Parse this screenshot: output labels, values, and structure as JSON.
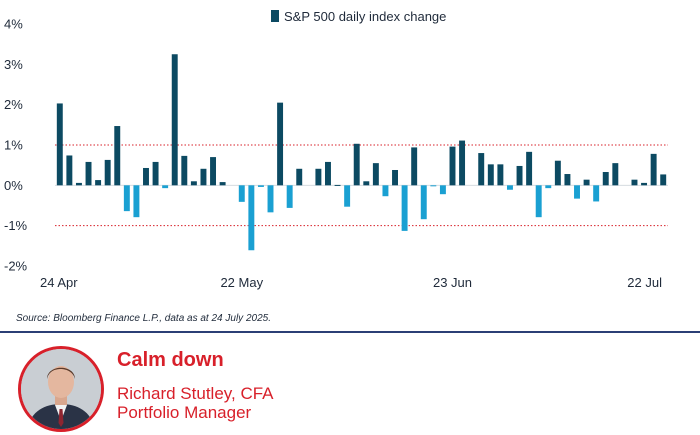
{
  "colors": {
    "positive": "#0c4a62",
    "negative": "#1aa0d2",
    "reference_line": "#d8202a",
    "accent": "#d8202a",
    "divider": "#2b3f75"
  },
  "chart_data": {
    "type": "bar",
    "legend": "S&P 500 daily index change",
    "legend_position": "top",
    "title": "",
    "xlabel": "",
    "ylabel": "",
    "ylim": [
      -2,
      4
    ],
    "yticks": [
      4,
      3,
      2,
      1,
      0,
      -1,
      -2
    ],
    "ytick_labels": [
      "4%",
      "3%",
      "2%",
      "1%",
      "0%",
      "-1%",
      "-2%"
    ],
    "reference_lines": [
      1,
      -1
    ],
    "x_tick_labels": [
      {
        "index": 0,
        "label": "24 Apr"
      },
      {
        "index": 19,
        "label": "22 May"
      },
      {
        "index": 41,
        "label": "23 Jun"
      },
      {
        "index": 61,
        "label": "22 Jul"
      }
    ],
    "series": [
      {
        "values": [
          2.03,
          0.74,
          0.06,
          0.58,
          0.13,
          0.63,
          1.47,
          -0.64,
          -0.79,
          0.43,
          0.58,
          -0.07,
          3.25,
          0.73,
          0.1,
          0.41,
          0.7,
          0.08,
          0.0,
          -0.41,
          -1.61,
          -0.04,
          -0.67,
          2.05,
          -0.56,
          0.41,
          0.0,
          0.41,
          0.58,
          0.01,
          -0.53,
          1.03,
          0.1,
          0.55,
          -0.27,
          0.38,
          -1.13,
          0.94,
          -0.84,
          -0.01,
          -0.22,
          0.96,
          1.11,
          0.0,
          0.8,
          0.52,
          0.52,
          -0.11,
          0.48,
          0.83,
          -0.79,
          -0.07,
          0.61,
          0.28,
          -0.33,
          0.14,
          -0.4,
          0.33,
          0.55,
          0.0,
          0.14,
          0.06,
          0.78,
          0.27
        ]
      }
    ]
  },
  "source": "Source: Bloomberg Finance L.P., data as at 24 July 2025.",
  "article": {
    "title": "Calm down",
    "author_name": "Richard Stutley, CFA",
    "author_role": "Portfolio Manager"
  }
}
